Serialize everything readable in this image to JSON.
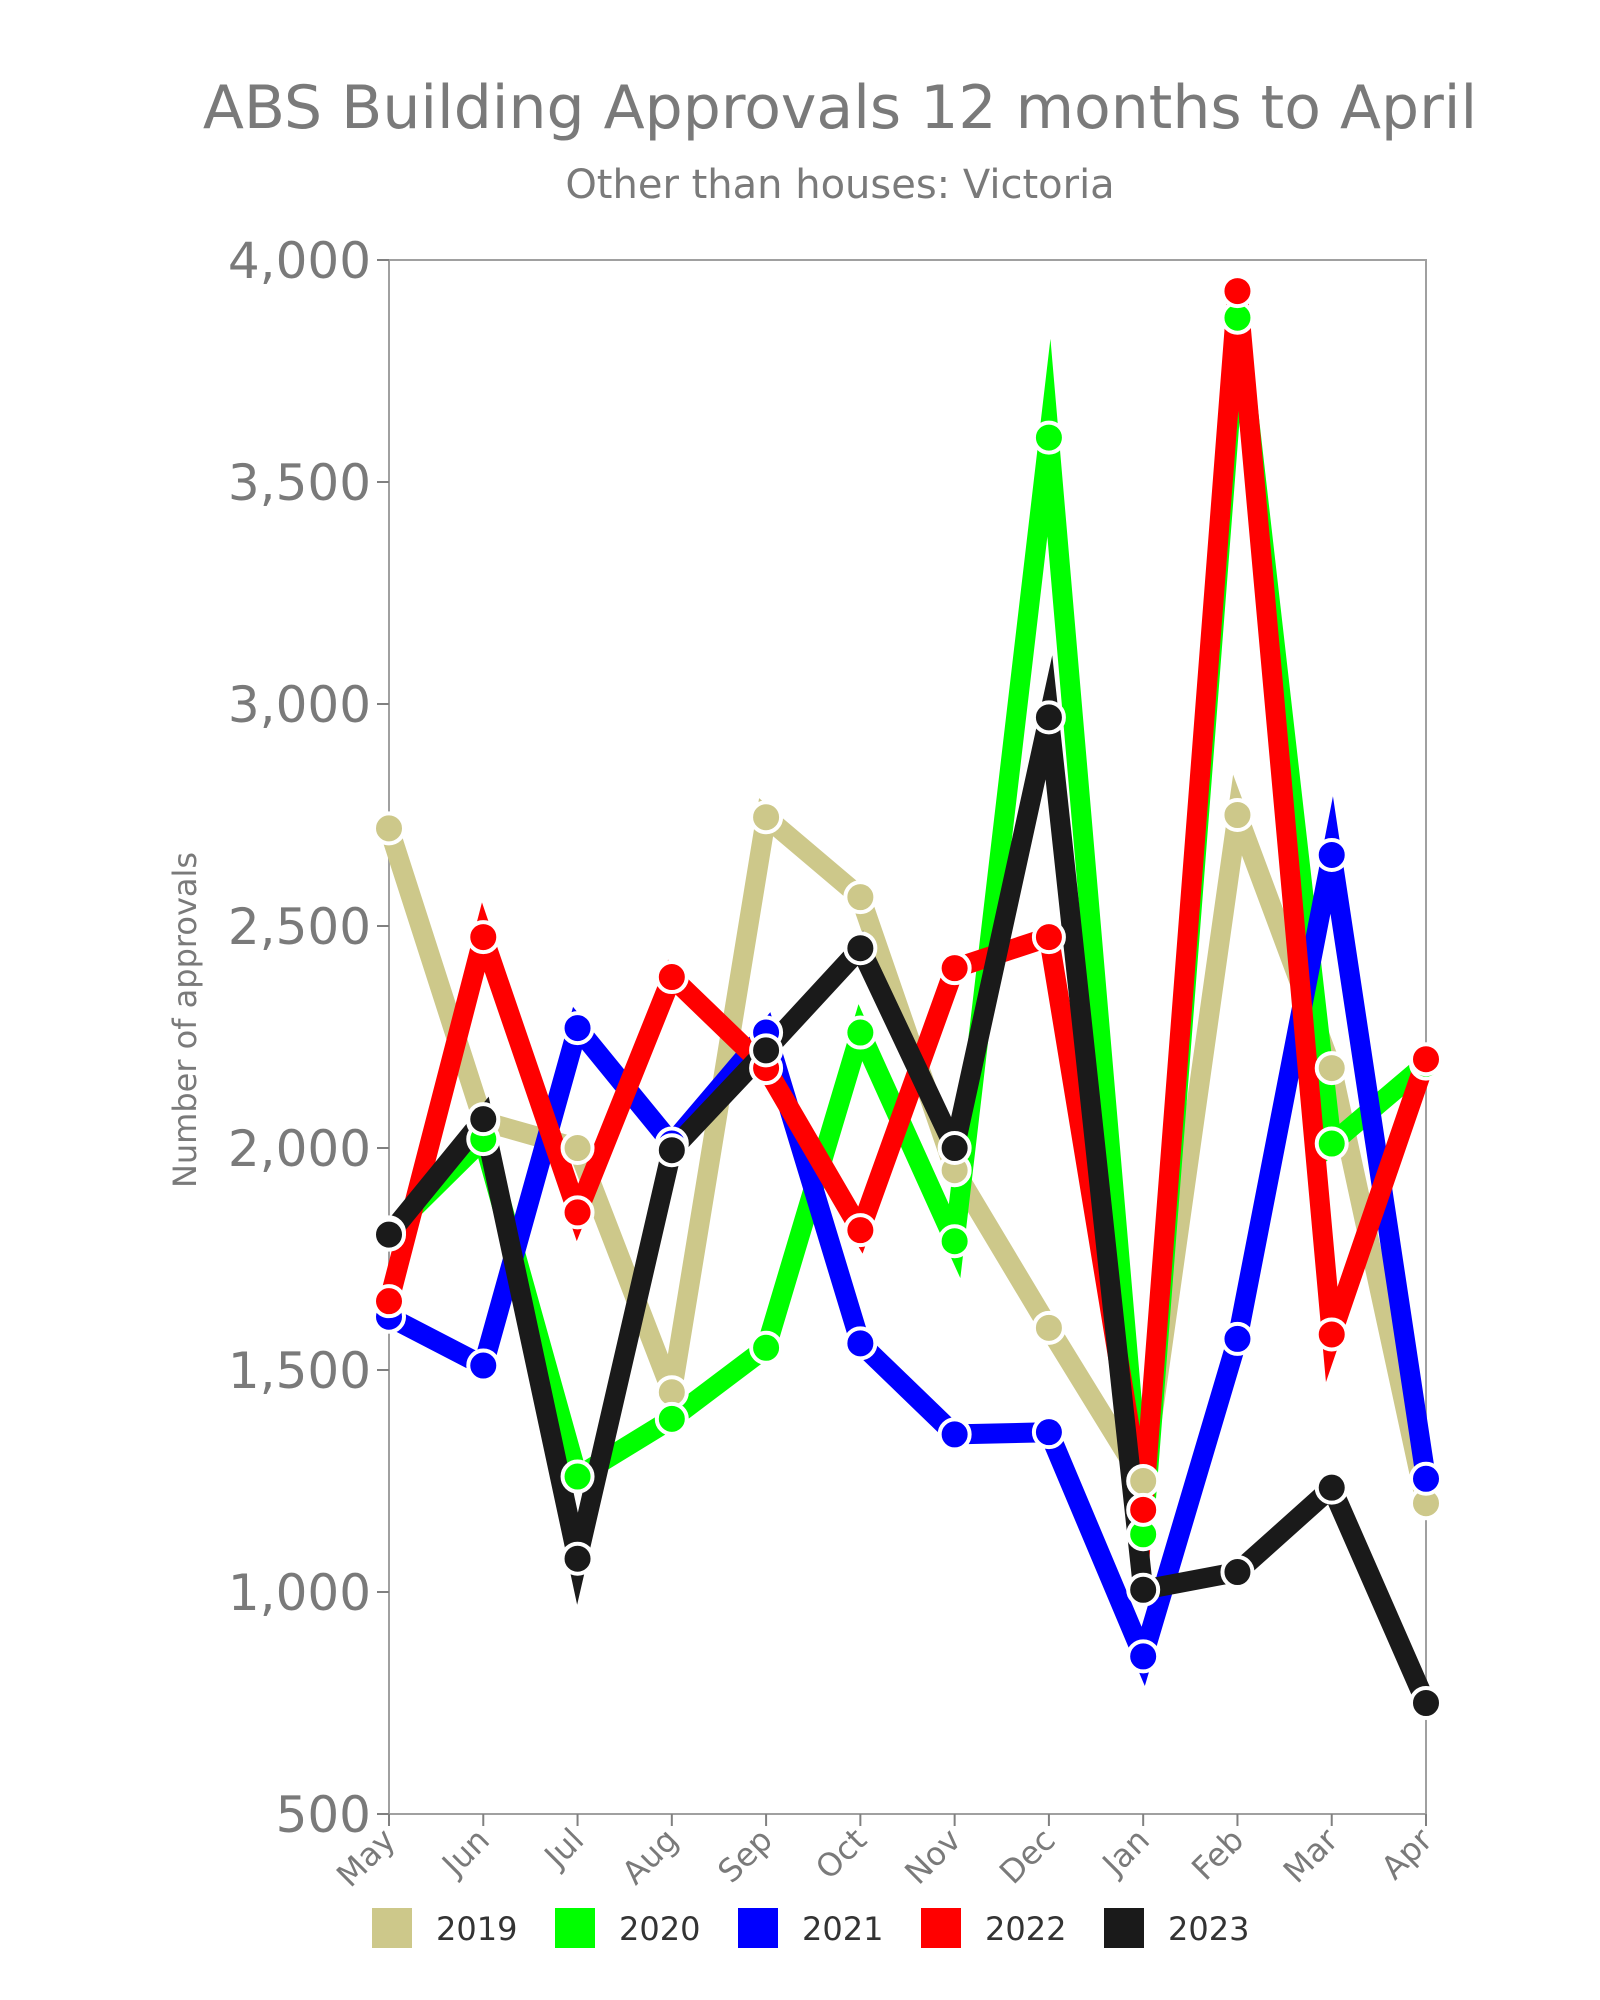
{
  "chart_data": {
    "type": "line",
    "title": "ABS Building Approvals 12 months to April",
    "subtitle": "Other than houses: Victoria",
    "xlabel": "",
    "ylabel": "Number of approvals",
    "ylim": [
      500,
      4000
    ],
    "y_ticks": [
      "500",
      "1,000",
      "1,500",
      "2,000",
      "2,500",
      "3,000",
      "3,500",
      "4,000"
    ],
    "grid": false,
    "legend_position": "bottom",
    "categories": [
      "May",
      "Jun",
      "Jul",
      "Aug",
      "Sep",
      "Oct",
      "Nov",
      "Dec",
      "Jan",
      "Feb",
      "Mar",
      "Apr"
    ],
    "series": [
      {
        "name": "2019",
        "color": "#cdc88a",
        "values": [
          2720,
          2060,
          2000,
          1450,
          2745,
          2565,
          1950,
          1595,
          1250,
          2750,
          2180,
          1200
        ]
      },
      {
        "name": "2020",
        "color": "#00ff00",
        "values": [
          1810,
          2020,
          1260,
          1390,
          1550,
          2260,
          1790,
          3600,
          1130,
          3870,
          2010,
          2190
        ]
      },
      {
        "name": "2021",
        "color": "#0000ff",
        "values": [
          1620,
          1510,
          2270,
          2010,
          2260,
          1560,
          1355,
          1360,
          855,
          1570,
          2660,
          1255
        ]
      },
      {
        "name": "2022",
        "color": "#ff0000",
        "values": [
          1655,
          2475,
          1855,
          2385,
          2180,
          1815,
          2405,
          2475,
          1185,
          3930,
          1580,
          2200
        ]
      },
      {
        "name": "2023",
        "color": "#1a1a1a",
        "values": [
          1805,
          2065,
          1075,
          1995,
          2220,
          2450,
          2000,
          2970,
          1005,
          1045,
          1235,
          750
        ]
      }
    ]
  }
}
